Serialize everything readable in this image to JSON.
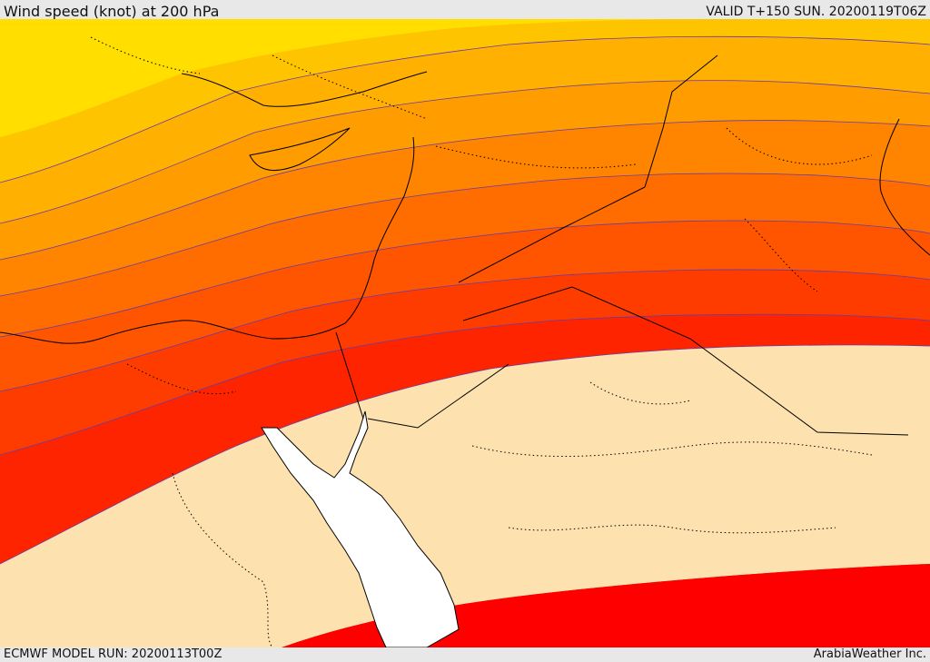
{
  "header": {
    "title": "Wind speed (knot) at 200 hPa",
    "valid": "VALID T+150 SUN. 20200119T06Z"
  },
  "footer": {
    "model_run": "ECMWF MODEL RUN: 20200113T00Z",
    "credit": "ArabiaWeather Inc."
  },
  "map": {
    "colors": {
      "band_1": "#ffde00",
      "band_2": "#ffc400",
      "band_3": "#ffb000",
      "band_4": "#ff9c00",
      "band_5": "#ff8400",
      "band_6": "#ff6c00",
      "band_7": "#ff5400",
      "band_8": "#ff3c00",
      "band_9": "#ff2400",
      "band_10": "#ff0000",
      "low_wind": "#fde1ae",
      "sea_water": "#ffffff",
      "coastline": "#000000",
      "contour_line": "#6a3aa8"
    }
  }
}
